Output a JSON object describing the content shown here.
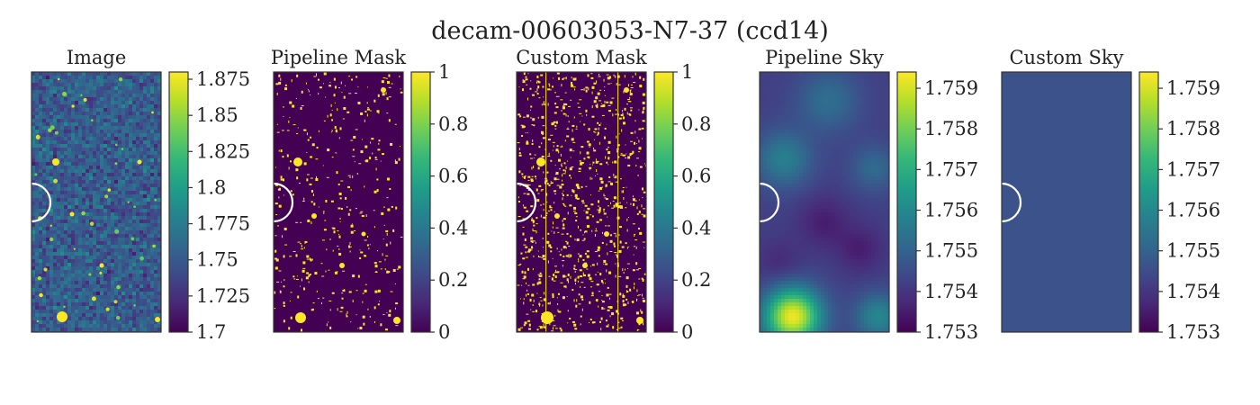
{
  "figure": {
    "title": "decam-00603053-N7-37 (ccd14)"
  },
  "colors": {
    "viridis": [
      "#440154",
      "#482878",
      "#3e4a89",
      "#31688e",
      "#26828e",
      "#1f9e89",
      "#35b779",
      "#6ece58",
      "#b5de2b",
      "#fde725"
    ],
    "frame": "#333333",
    "mask_off": "#440154",
    "mask_on": "#fde725",
    "custom_sky_fill": "#3b528b",
    "arc": "#ffffff"
  },
  "chart_data": [
    {
      "type": "heatmap",
      "title": "Image",
      "content": "noisy-sky-with-point-sources",
      "colorbar": {
        "range": [
          1.7,
          1.88
        ],
        "ticks": [
          1.7,
          1.725,
          1.75,
          1.775,
          1.8,
          1.825,
          1.85,
          1.875
        ],
        "tick_labels": [
          "1.7",
          "1.725",
          "1.75",
          "1.775",
          "1.8",
          "1.825",
          "1.85",
          "1.875"
        ]
      }
    },
    {
      "type": "heatmap",
      "title": "Pipeline Mask",
      "content": "binary-mask",
      "colorbar": {
        "range": [
          0,
          1
        ],
        "ticks": [
          0,
          0.2,
          0.4,
          0.6,
          0.8,
          1
        ],
        "tick_labels": [
          "0",
          "0.2",
          "0.4",
          "0.6",
          "0.8",
          "1"
        ]
      }
    },
    {
      "type": "heatmap",
      "title": "Custom Mask",
      "content": "binary-mask-dense",
      "colorbar": {
        "range": [
          0,
          1
        ],
        "ticks": [
          0,
          0.2,
          0.4,
          0.6,
          0.8,
          1
        ],
        "tick_labels": [
          "0",
          "0.2",
          "0.4",
          "0.6",
          "0.8",
          "1"
        ]
      }
    },
    {
      "type": "heatmap",
      "title": "Pipeline Sky",
      "content": "smooth-sky-model",
      "colorbar": {
        "range": [
          1.753,
          1.7594
        ],
        "ticks": [
          1.753,
          1.754,
          1.755,
          1.756,
          1.757,
          1.758,
          1.759
        ],
        "tick_labels": [
          "1.753",
          "1.754",
          "1.755",
          "1.756",
          "1.757",
          "1.758",
          "1.759"
        ]
      }
    },
    {
      "type": "heatmap",
      "title": "Custom Sky",
      "content": "constant-sky",
      "constant_value": 1.7547,
      "colorbar": {
        "range": [
          1.753,
          1.7594
        ],
        "ticks": [
          1.753,
          1.754,
          1.755,
          1.756,
          1.757,
          1.758,
          1.759
        ],
        "tick_labels": [
          "1.753",
          "1.754",
          "1.755",
          "1.756",
          "1.757",
          "1.758",
          "1.759"
        ]
      }
    }
  ]
}
